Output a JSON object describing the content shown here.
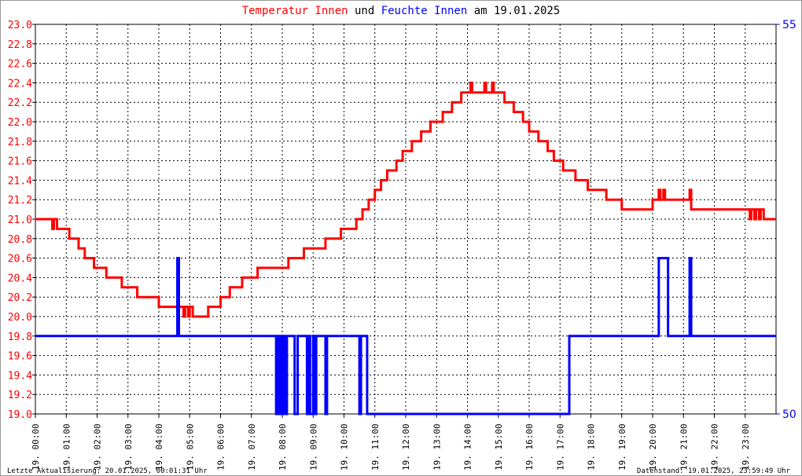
{
  "title": {
    "p1": "Temperatur Innen",
    "p2": " und ",
    "p3": "Feuchte Innen",
    "p4": " am 19.01.2025"
  },
  "footer": {
    "left": "Letzte Aktualisierung: 20.01.2025, 00:01:31 Uhr",
    "right": "Datenstand: 19.01.2025, 23:59:49 Uhr"
  },
  "colors": {
    "temp": "#ff0000",
    "hum": "#0000ff"
  },
  "chart_data": {
    "type": "line",
    "title": "Temperatur Innen und Feuchte Innen am 19.01.2025",
    "x_ticks": [
      "19. 00:00",
      "19. 01:00",
      "19. 02:00",
      "19. 03:00",
      "19. 04:00",
      "19. 05:00",
      "19. 06:00",
      "19. 07:00",
      "19. 08:00",
      "19. 09:00",
      "19. 10:00",
      "19. 11:00",
      "19. 12:00",
      "19. 13:00",
      "19. 14:00",
      "19. 15:00",
      "19. 16:00",
      "19. 17:00",
      "19. 18:00",
      "19. 19:00",
      "19. 20:00",
      "19. 21:00",
      "19. 22:00",
      "19. 23:00"
    ],
    "xlim": [
      0,
      24
    ],
    "y_left": {
      "ylim": [
        19.0,
        23.0
      ],
      "ticks": [
        "19.0",
        "19.2",
        "19.4",
        "19.6",
        "19.8",
        "20.0",
        "20.2",
        "20.4",
        "20.6",
        "20.8",
        "21.0",
        "21.2",
        "21.4",
        "21.6",
        "21.8",
        "22.0",
        "22.2",
        "22.4",
        "22.6",
        "22.8",
        "23.0"
      ]
    },
    "y_right": {
      "ylim": [
        50,
        55
      ],
      "ticks": [
        "50",
        "55"
      ]
    },
    "series": [
      {
        "name": "Temperatur Innen",
        "axis": "left",
        "step": true,
        "points": [
          [
            0,
            21.0
          ],
          [
            0.55,
            20.9
          ],
          [
            0.6,
            21.0
          ],
          [
            0.7,
            20.9
          ],
          [
            1.1,
            20.8
          ],
          [
            1.4,
            20.7
          ],
          [
            1.6,
            20.6
          ],
          [
            1.9,
            20.5
          ],
          [
            2.3,
            20.4
          ],
          [
            2.8,
            20.3
          ],
          [
            3.3,
            20.2
          ],
          [
            4.0,
            20.1
          ],
          [
            4.6,
            20.0
          ],
          [
            4.65,
            20.1
          ],
          [
            4.8,
            20.0
          ],
          [
            4.85,
            20.1
          ],
          [
            4.95,
            20.0
          ],
          [
            5.0,
            20.1
          ],
          [
            5.1,
            20.0
          ],
          [
            5.6,
            20.1
          ],
          [
            6.0,
            20.2
          ],
          [
            6.3,
            20.3
          ],
          [
            6.7,
            20.4
          ],
          [
            7.2,
            20.5
          ],
          [
            8.2,
            20.6
          ],
          [
            8.7,
            20.7
          ],
          [
            9.4,
            20.8
          ],
          [
            9.9,
            20.9
          ],
          [
            10.4,
            21.0
          ],
          [
            10.6,
            21.1
          ],
          [
            10.8,
            21.2
          ],
          [
            11.0,
            21.3
          ],
          [
            11.2,
            21.4
          ],
          [
            11.4,
            21.5
          ],
          [
            11.7,
            21.6
          ],
          [
            11.9,
            21.7
          ],
          [
            12.2,
            21.8
          ],
          [
            12.5,
            21.9
          ],
          [
            12.8,
            22.0
          ],
          [
            13.2,
            22.1
          ],
          [
            13.5,
            22.2
          ],
          [
            13.8,
            22.3
          ],
          [
            14.1,
            22.4
          ],
          [
            14.15,
            22.3
          ],
          [
            14.55,
            22.4
          ],
          [
            14.6,
            22.3
          ],
          [
            14.8,
            22.4
          ],
          [
            14.85,
            22.3
          ],
          [
            15.2,
            22.2
          ],
          [
            15.5,
            22.1
          ],
          [
            15.8,
            22.0
          ],
          [
            16.0,
            21.9
          ],
          [
            16.3,
            21.8
          ],
          [
            16.6,
            21.7
          ],
          [
            16.8,
            21.6
          ],
          [
            17.1,
            21.5
          ],
          [
            17.5,
            21.4
          ],
          [
            17.9,
            21.3
          ],
          [
            18.5,
            21.2
          ],
          [
            19.0,
            21.1
          ],
          [
            20.0,
            21.2
          ],
          [
            20.2,
            21.3
          ],
          [
            20.25,
            21.2
          ],
          [
            20.35,
            21.3
          ],
          [
            20.4,
            21.2
          ],
          [
            21.2,
            21.3
          ],
          [
            21.25,
            21.1
          ],
          [
            23.15,
            21.0
          ],
          [
            23.2,
            21.1
          ],
          [
            23.3,
            21.0
          ],
          [
            23.35,
            21.1
          ],
          [
            23.45,
            21.0
          ],
          [
            23.5,
            21.1
          ],
          [
            23.6,
            21.0
          ],
          [
            24,
            21.0
          ]
        ]
      },
      {
        "name": "Feuchte Innen",
        "axis": "right",
        "step": true,
        "points": [
          [
            0,
            51
          ],
          [
            4.6,
            52
          ],
          [
            4.65,
            51
          ],
          [
            7.8,
            50
          ],
          [
            7.85,
            51
          ],
          [
            7.9,
            50
          ],
          [
            7.95,
            51
          ],
          [
            8.0,
            50
          ],
          [
            8.05,
            51
          ],
          [
            8.1,
            50
          ],
          [
            8.15,
            51
          ],
          [
            8.4,
            50
          ],
          [
            8.5,
            51
          ],
          [
            8.8,
            50
          ],
          [
            8.85,
            51
          ],
          [
            8.9,
            50
          ],
          [
            9.0,
            51
          ],
          [
            9.05,
            50
          ],
          [
            9.1,
            51
          ],
          [
            9.4,
            50
          ],
          [
            9.45,
            51
          ],
          [
            10.5,
            50
          ],
          [
            10.55,
            51
          ],
          [
            10.75,
            50
          ],
          [
            17.3,
            51
          ],
          [
            20.2,
            52
          ],
          [
            20.5,
            51
          ],
          [
            21.2,
            52
          ],
          [
            21.25,
            51
          ],
          [
            24,
            51
          ]
        ]
      }
    ]
  }
}
